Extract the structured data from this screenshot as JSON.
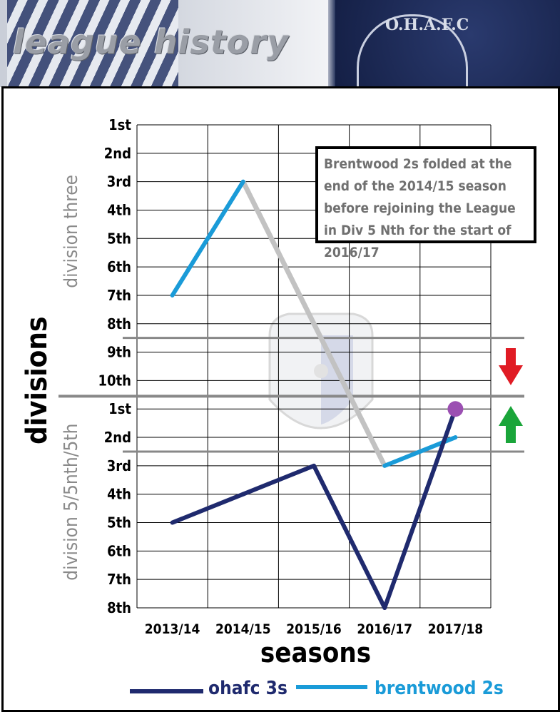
{
  "banner": {
    "title": "league history",
    "crest_text": "O.H.A.F.C"
  },
  "note": "Brentwood 2s folded at the end of the 2014/15 season before rejoining the League in Div 5 Nth for the start of 2016/17",
  "colors": {
    "ohafc": "#1f2a6e",
    "brentwood": "#1a9bd8",
    "gap": "#c2c2c2",
    "divider": "#888888",
    "relegation": "#e01b24",
    "promotion": "#1aa53a",
    "champion_marker": "#9b4fb2"
  },
  "chart_data": {
    "type": "line",
    "xlabel": "seasons",
    "ylabel": "divisions",
    "categories": [
      "2013/14",
      "2014/15",
      "2015/16",
      "2016/17",
      "2017/18"
    ],
    "y_tick_labels": [
      "1st",
      "2nd",
      "3rd",
      "4th",
      "5th",
      "6th",
      "7th",
      "8th",
      "9th",
      "10th",
      "1st",
      "2nd",
      "3rd",
      "4th",
      "5th",
      "6th",
      "7th",
      "8th"
    ],
    "divisions": [
      {
        "label": "division three",
        "positions": 10
      },
      {
        "label": "division 5/5nth/5th",
        "positions": 8
      }
    ],
    "grid": true,
    "series": [
      {
        "name": "ohafc 3s",
        "division_positions": [
          [
            "division 5/5nth/5th",
            5
          ],
          [
            "division 5/5nth/5th",
            4
          ],
          [
            "division 5/5nth/5th",
            3
          ],
          [
            "division 5/5nth/5th",
            8
          ],
          [
            "division 5/5nth/5th",
            1
          ]
        ]
      },
      {
        "name": "brentwood 2s",
        "division_positions": [
          [
            "division three",
            7
          ],
          [
            "division three",
            3
          ],
          null,
          [
            "division 5/5nth/5th",
            3
          ],
          [
            "division 5/5nth/5th",
            2
          ]
        ]
      }
    ],
    "annotations": [
      "relegation zone arrow between division three and division 5",
      "promotion zone arrow at top of division 5",
      "2017/18 ohafc 3s marked with circle"
    ]
  },
  "legend": {
    "placement": "bottom"
  }
}
